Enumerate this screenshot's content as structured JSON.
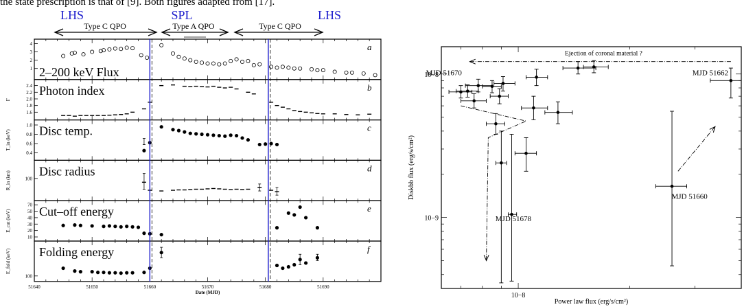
{
  "caption_fragment": "the state prescription is that of [9]. Both figures adapted from [17].",
  "left_figure": {
    "state_labels": [
      {
        "text": "LHS",
        "pos": "left"
      },
      {
        "text": "SPL",
        "pos": "middle"
      },
      {
        "text": "LHS",
        "pos": "right"
      }
    ],
    "qpo_labels": [
      "Type C QPO",
      "Type A QPO",
      "Type C QPO"
    ],
    "xlabel": "Date (MJD)",
    "x_ticks": [
      "51640",
      "51650",
      "51660",
      "51670",
      "51680",
      "51690"
    ],
    "x_range": [
      51640,
      51700
    ],
    "transition_lines_mjd": [
      51660,
      51680.5
    ],
    "panels": [
      {
        "id": "a",
        "title": "2–200 keV Flux",
        "ylabel": "",
        "yticks": [
          "1",
          "2",
          "3",
          "4"
        ],
        "ylim": [
          0,
          4.2
        ],
        "marker": "open",
        "points": [
          [
            51645,
            2.5
          ],
          [
            51646.5,
            2.8
          ],
          [
            51647,
            2.9
          ],
          [
            51648.5,
            2.7
          ],
          [
            51650,
            3.0
          ],
          [
            51651.5,
            3.1
          ],
          [
            51652,
            3.2
          ],
          [
            51653,
            3.3
          ],
          [
            51654,
            3.4
          ],
          [
            51655,
            3.35
          ],
          [
            51656,
            3.5
          ],
          [
            51657,
            3.45
          ],
          [
            51658.5,
            2.6
          ],
          [
            51659.5,
            2.3
          ],
          [
            51662,
            3.8
          ],
          [
            51664,
            2.8
          ],
          [
            51665,
            2.4
          ],
          [
            51666,
            2.2
          ],
          [
            51667,
            2.0
          ],
          [
            51668,
            1.8
          ],
          [
            51669,
            1.7
          ],
          [
            51670,
            1.6
          ],
          [
            51671,
            1.6
          ],
          [
            51672,
            1.5
          ],
          [
            51673,
            1.6
          ],
          [
            51674,
            1.9
          ],
          [
            51675,
            2.1
          ],
          [
            51676,
            1.8
          ],
          [
            51677,
            1.9
          ],
          [
            51678,
            1.4
          ],
          [
            51679,
            1.5
          ],
          [
            51681,
            1.2
          ],
          [
            51682,
            1.1
          ],
          [
            51683,
            1.2
          ],
          [
            51684,
            1.1
          ],
          [
            51685,
            1.0
          ],
          [
            51686,
            1.0
          ],
          [
            51688,
            0.9
          ],
          [
            51689,
            0.8
          ],
          [
            51690,
            0.8
          ],
          [
            51692,
            0.6
          ],
          [
            51694,
            0.5
          ],
          [
            51695,
            0.5
          ],
          [
            51697,
            0.4
          ],
          [
            51699,
            0.2
          ]
        ]
      },
      {
        "id": "b",
        "title": "Photon index",
        "ylabel": "Γ",
        "yticks": [
          "1.6",
          "1.8",
          "2.0",
          "2.2",
          "2.4"
        ],
        "ylim": [
          1.45,
          2.5
        ],
        "marker": "dash",
        "points": [
          [
            51645,
            1.5
          ],
          [
            51646,
            1.5
          ],
          [
            51647,
            1.48
          ],
          [
            51648,
            1.5
          ],
          [
            51649,
            1.5
          ],
          [
            51650,
            1.5
          ],
          [
            51651,
            1.5
          ],
          [
            51652,
            1.5
          ],
          [
            51653,
            1.51
          ],
          [
            51654,
            1.52
          ],
          [
            51655,
            1.53
          ],
          [
            51656,
            1.55
          ],
          [
            51657,
            1.6
          ],
          [
            51659,
            1.7
          ],
          [
            51660,
            1.9
          ],
          [
            51662,
            2.4
          ],
          [
            51664,
            2.42
          ],
          [
            51666,
            2.38
          ],
          [
            51667,
            2.37
          ],
          [
            51668,
            2.38
          ],
          [
            51669,
            2.37
          ],
          [
            51670,
            2.36
          ],
          [
            51671,
            2.38
          ],
          [
            51672,
            2.35
          ],
          [
            51673,
            2.33
          ],
          [
            51674,
            2.35
          ],
          [
            51675,
            2.3
          ],
          [
            51677,
            2.2
          ],
          [
            51678,
            2.15
          ],
          [
            51681,
            1.9
          ],
          [
            51682,
            1.8
          ],
          [
            51683,
            1.75
          ],
          [
            51684,
            1.7
          ],
          [
            51685,
            1.65
          ],
          [
            51686,
            1.62
          ],
          [
            51687,
            1.6
          ],
          [
            51688,
            1.58
          ],
          [
            51689,
            1.56
          ],
          [
            51690,
            1.55
          ],
          [
            51692,
            1.55
          ],
          [
            51694,
            1.53
          ],
          [
            51696,
            1.52
          ],
          [
            51698,
            1.54
          ]
        ]
      },
      {
        "id": "c",
        "title": "Disc temp.",
        "ylabel": "T_in (keV)",
        "yticks": [
          "0.4",
          "0.6",
          "0.8",
          "1.0"
        ],
        "ylim": [
          0.3,
          1.05
        ],
        "marker": "filled",
        "points": [
          [
            51659,
            0.45
          ],
          [
            51660,
            0.62
          ],
          [
            51662,
            0.96
          ],
          [
            51664,
            0.9
          ],
          [
            51665,
            0.88
          ],
          [
            51666,
            0.85
          ],
          [
            51667,
            0.82
          ],
          [
            51668,
            0.81
          ],
          [
            51669,
            0.8
          ],
          [
            51670,
            0.79
          ],
          [
            51671,
            0.78
          ],
          [
            51672,
            0.77
          ],
          [
            51673,
            0.76
          ],
          [
            51674,
            0.78
          ],
          [
            51675,
            0.77
          ],
          [
            51676,
            0.72
          ],
          [
            51677,
            0.68
          ],
          [
            51679,
            0.58
          ],
          [
            51680,
            0.59
          ],
          [
            51681,
            0.6
          ],
          [
            51682,
            0.58
          ]
        ]
      },
      {
        "id": "d",
        "title": "Disc radius",
        "ylabel": "R_in (km)",
        "yticks": [
          "100"
        ],
        "ylim": [
          0,
          1
        ],
        "marker": "dash",
        "points": [
          [
            51659,
            0.45
          ],
          [
            51660,
            0.22
          ],
          [
            51662,
            0.2
          ],
          [
            51664,
            0.22
          ],
          [
            51665,
            0.23
          ],
          [
            51666,
            0.23
          ],
          [
            51667,
            0.24
          ],
          [
            51668,
            0.25
          ],
          [
            51669,
            0.25
          ],
          [
            51670,
            0.26
          ],
          [
            51671,
            0.27
          ],
          [
            51672,
            0.26
          ],
          [
            51673,
            0.25
          ],
          [
            51674,
            0.24
          ],
          [
            51675,
            0.25
          ],
          [
            51676,
            0.24
          ],
          [
            51677,
            0.25
          ],
          [
            51679,
            0.3
          ],
          [
            51681,
            0.22
          ],
          [
            51682,
            0.18
          ]
        ]
      },
      {
        "id": "e",
        "title": "Cut–off energy",
        "ylabel": "E_cut (keV)",
        "yticks": [
          "10",
          "20",
          "30",
          "40",
          "50",
          "70"
        ],
        "ylim": [
          0,
          80
        ],
        "marker": "filled",
        "points": [
          [
            51645,
            35
          ],
          [
            51647,
            36
          ],
          [
            51648,
            35
          ],
          [
            51650,
            34
          ],
          [
            51652,
            33
          ],
          [
            51653,
            34
          ],
          [
            51654,
            33
          ],
          [
            51655,
            32
          ],
          [
            51656,
            33
          ],
          [
            51657,
            32
          ],
          [
            51658,
            31
          ],
          [
            51659,
            18
          ],
          [
            51660,
            17
          ],
          [
            51662,
            15
          ],
          [
            51682,
            30
          ],
          [
            51684,
            62
          ],
          [
            51685,
            58
          ],
          [
            51686,
            75
          ],
          [
            51687,
            52
          ],
          [
            51689,
            30
          ]
        ]
      },
      {
        "id": "f",
        "title": "Folding energy",
        "ylabel": "E_fold (keV)",
        "yticks": [
          "100"
        ],
        "ylim": [
          0,
          1
        ],
        "marker": "filled",
        "points": [
          [
            51645,
            0.3
          ],
          [
            51647,
            0.22
          ],
          [
            51648,
            0.2
          ],
          [
            51650,
            0.2
          ],
          [
            51651,
            0.18
          ],
          [
            51652,
            0.18
          ],
          [
            51653,
            0.17
          ],
          [
            51654,
            0.17
          ],
          [
            51655,
            0.16
          ],
          [
            51656,
            0.17
          ],
          [
            51657,
            0.17
          ],
          [
            51659,
            0.18
          ],
          [
            51660,
            0.3
          ],
          [
            51662,
            0.75
          ],
          [
            51682,
            0.38
          ],
          [
            51683,
            0.3
          ],
          [
            51684,
            0.34
          ],
          [
            51685,
            0.4
          ],
          [
            51686,
            0.55
          ],
          [
            51687,
            0.45
          ],
          [
            51689,
            0.6
          ]
        ]
      }
    ]
  },
  "chart_data": {
    "type": "scatter",
    "xlabel": "Power law flux (erg/s/cm²)",
    "ylabel": "Diskbb flux (erg/s/cm²)",
    "x_scale": "log",
    "y_scale": "log",
    "xlim": [
      6.2e-09,
      4e-08
    ],
    "ylim": [
      3.2e-10,
      1.55e-08
    ],
    "x_ticks": [
      {
        "value": 1e-08,
        "label": "10−8"
      }
    ],
    "y_ticks": [
      {
        "value": 1e-09,
        "label": "10−9"
      },
      {
        "value": 1e-08,
        "label": "10−8"
      }
    ],
    "annotations": [
      {
        "text": "Ejection of coronal material ?",
        "x": 1.7e-08,
        "y": 1.35e-08
      },
      {
        "text": "MJD 51670",
        "x": 6.3e-09,
        "y": 9.8e-09
      },
      {
        "text": "MJD 51662",
        "x": 3.3e-08,
        "y": 9.8e-09
      },
      {
        "text": "MJD 51678",
        "x": 9.7e-09,
        "y": 9.4e-10
      },
      {
        "text": "MJD 51660",
        "x": 2.9e-08,
        "y": 1.35e-09
      }
    ],
    "points": [
      {
        "x": 7e-09,
        "y": 7.5e-09,
        "xerr": [
          6.5e-09,
          7.5e-09
        ],
        "yerr": [
          6.8e-09,
          8.3e-09
        ]
      },
      {
        "x": 7.3e-09,
        "y": 7.6e-09,
        "xerr": [
          6.8e-09,
          7.8e-09
        ],
        "yerr": [
          6.9e-09,
          8.4e-09
        ]
      },
      {
        "x": 7.8e-09,
        "y": 8.3e-09,
        "xerr": [
          7.2e-09,
          8.5e-09
        ],
        "yerr": [
          7.5e-09,
          9.2e-09
        ]
      },
      {
        "x": 7.6e-09,
        "y": 6.5e-09,
        "xerr": [
          7e-09,
          8.2e-09
        ],
        "yerr": [
          5.8e-09,
          7.3e-09
        ]
      },
      {
        "x": 8.5e-09,
        "y": 8.2e-09,
        "xerr": [
          8e-09,
          9e-09
        ],
        "yerr": [
          7.4e-09,
          9e-09
        ]
      },
      {
        "x": 8.9e-09,
        "y": 7e-09,
        "xerr": [
          8.4e-09,
          9.4e-09
        ],
        "yerr": [
          6.2e-09,
          7.9e-09
        ]
      },
      {
        "x": 9.1e-09,
        "y": 8.6e-09,
        "xerr": [
          8.6e-09,
          9.8e-09
        ],
        "yerr": [
          7.6e-09,
          9.6e-09
        ]
      },
      {
        "x": 1.12e-08,
        "y": 9.5e-09,
        "xerr": [
          1.05e-08,
          1.2e-08
        ],
        "yerr": [
          8.3e-09,
          1.08e-08
        ]
      },
      {
        "x": 1.45e-08,
        "y": 1.1e-08,
        "xerr": [
          1.32e-08,
          1.62e-08
        ],
        "yerr": [
          1e-08,
          1.22e-08
        ]
      },
      {
        "x": 1.6e-08,
        "y": 1.12e-08,
        "xerr": [
          1.5e-08,
          1.75e-08
        ],
        "yerr": [
          1.02e-08,
          1.24e-08
        ]
      },
      {
        "x": 8.7e-09,
        "y": 4.5e-09,
        "xerr": [
          8.2e-09,
          9.2e-09
        ],
        "yerr": [
          3.8e-09,
          5.3e-09
        ]
      },
      {
        "x": 9e-09,
        "y": 2.4e-09,
        "xerr": [
          8.7e-09,
          9.3e-09
        ],
        "yerr": [
          3.5e-10,
          4e-09
        ]
      },
      {
        "x": 1.1e-08,
        "y": 5.8e-09,
        "xerr": [
          1.02e-08,
          1.2e-08
        ],
        "yerr": [
          4.8e-09,
          7e-09
        ]
      },
      {
        "x": 1.28e-08,
        "y": 5.4e-09,
        "xerr": [
          1.18e-08,
          1.4e-08
        ],
        "yerr": [
          4.5e-09,
          6.4e-09
        ]
      },
      {
        "x": 1.05e-08,
        "y": 2.8e-09,
        "xerr": [
          9.8e-09,
          1.12e-08
        ],
        "yerr": [
          2.1e-09,
          3.6e-09
        ]
      },
      {
        "x": 9.6e-09,
        "y": 1.05e-09,
        "xerr": [
          9.4e-09,
          9.9e-09
        ],
        "yerr": [
          3.6e-10,
          3.8e-09
        ]
      },
      {
        "x": 2.6e-08,
        "y": 1.65e-09,
        "xerr": [
          2.35e-08,
          2.85e-08
        ],
        "yerr": [
          4.6e-10,
          5.5e-09
        ]
      },
      {
        "x": 3.75e-08,
        "y": 9e-09,
        "xerr": [
          3.3e-08,
          4e-08
        ],
        "yerr": [
          6.8e-09,
          1.1e-08
        ]
      }
    ],
    "arrows": [
      {
        "style": "dash-dot",
        "path": [
          [
            3.75e-08,
            1.22e-08
          ],
          [
            7.4e-09,
            1.22e-08
          ]
        ]
      },
      {
        "style": "dash-dot",
        "path": [
          [
            2.7e-08,
            2.1e-09
          ],
          [
            3.4e-08,
            4.3e-09
          ]
        ]
      },
      {
        "style": "dash-dot",
        "path": [
          [
            7e-09,
            6e-09
          ],
          [
            1.05e-08,
            4.7e-09
          ],
          [
            8.3e-09,
            3.6e-09
          ],
          [
            8.2e-09,
            5e-10
          ]
        ]
      }
    ]
  }
}
